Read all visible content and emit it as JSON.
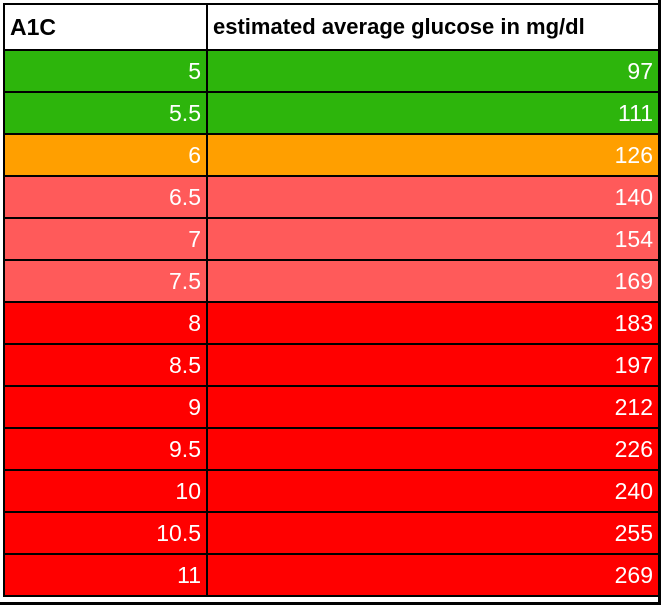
{
  "header": {
    "a1c_label": "A1C",
    "eag_label": "estimated average glucose in mg/dl"
  },
  "colors": {
    "normal": "#2db50c",
    "prediabetes": "#ff9f00",
    "elevated": "#ff5a5a",
    "high": "#ff0000"
  },
  "rows": [
    {
      "a1c": "5",
      "eag": "97",
      "level": "normal"
    },
    {
      "a1c": "5.5",
      "eag": "111",
      "level": "normal"
    },
    {
      "a1c": "6",
      "eag": "126",
      "level": "prediabetes"
    },
    {
      "a1c": "6.5",
      "eag": "140",
      "level": "elevated"
    },
    {
      "a1c": "7",
      "eag": "154",
      "level": "elevated"
    },
    {
      "a1c": "7.5",
      "eag": "169",
      "level": "elevated"
    },
    {
      "a1c": "8",
      "eag": "183",
      "level": "high"
    },
    {
      "a1c": "8.5",
      "eag": "197",
      "level": "high"
    },
    {
      "a1c": "9",
      "eag": "212",
      "level": "high"
    },
    {
      "a1c": "9.5",
      "eag": "226",
      "level": "high"
    },
    {
      "a1c": "10",
      "eag": "240",
      "level": "high"
    },
    {
      "a1c": "10.5",
      "eag": "255",
      "level": "high"
    },
    {
      "a1c": "11",
      "eag": "269",
      "level": "high"
    }
  ]
}
